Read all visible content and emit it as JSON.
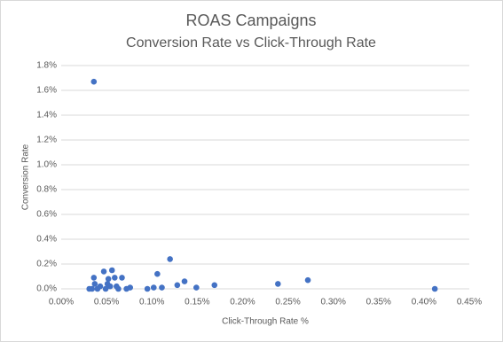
{
  "chart_data": {
    "type": "scatter",
    "title": "ROAS Campaigns",
    "subtitle": "Conversion Rate vs Click-Through Rate",
    "x_label": "Click-Through Rate %",
    "y_label": "Conversion Rate",
    "color": "#4472c4",
    "grid": true,
    "x": [
      0.036,
      0.031,
      0.034,
      0.037,
      0.036,
      0.04,
      0.043,
      0.047,
      0.049,
      0.051,
      0.052,
      0.054,
      0.056,
      0.059,
      0.061,
      0.063,
      0.067,
      0.072,
      0.076,
      0.095,
      0.102,
      0.106,
      0.111,
      0.12,
      0.128,
      0.136,
      0.149,
      0.169,
      0.239,
      0.272,
      0.412
    ],
    "values": [
      1.67,
      0,
      0,
      0.04,
      0.09,
      0,
      0.02,
      0.14,
      0,
      0.04,
      0.08,
      0.02,
      0.15,
      0.09,
      0.02,
      0,
      0.09,
      0,
      0.01,
      0,
      0.01,
      0.12,
      0.01,
      0.24,
      0.03,
      0.06,
      0.01,
      0.03,
      0.04,
      0.07,
      0
    ],
    "xlim": [
      0,
      0.45
    ],
    "xticks": [
      {
        "value": 0,
        "label": "0.00%"
      },
      {
        "value": 0.05,
        "label": "0.05%"
      },
      {
        "value": 0.1,
        "label": "0.10%"
      },
      {
        "value": 0.15,
        "label": "0.15%"
      },
      {
        "value": 0.2,
        "label": "0.20%"
      },
      {
        "value": 0.25,
        "label": "0.25%"
      },
      {
        "value": 0.3,
        "label": "0.30%"
      },
      {
        "value": 0.35,
        "label": "0.35%"
      },
      {
        "value": 0.4,
        "label": "0.40%"
      },
      {
        "value": 0.45,
        "label": "0.45%"
      }
    ],
    "ylim": [
      0,
      1.8
    ],
    "yticks": [
      {
        "value": 0,
        "label": "0.0%"
      },
      {
        "value": 0.2,
        "label": "0.2%"
      },
      {
        "value": 0.4,
        "label": "0.4%"
      },
      {
        "value": 0.6,
        "label": "0.6%"
      },
      {
        "value": 0.8,
        "label": "0.8%"
      },
      {
        "value": 1.0,
        "label": "1.0%"
      },
      {
        "value": 1.2,
        "label": "1.2%"
      },
      {
        "value": 1.4,
        "label": "1.4%"
      },
      {
        "value": 1.6,
        "label": "1.6%"
      },
      {
        "value": 1.8,
        "label": "1.8%"
      }
    ]
  }
}
